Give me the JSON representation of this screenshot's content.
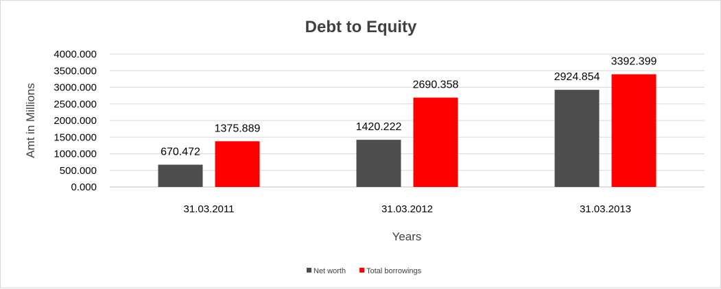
{
  "chart_data": {
    "type": "bar",
    "title": "Debt to Equity",
    "xlabel": "Years",
    "ylabel": "Amt in Millions",
    "categories": [
      "31.03.2011",
      "31.03.2012",
      "31.03.2013"
    ],
    "series": [
      {
        "name": "Net worth",
        "color": "#4d4d4d",
        "values": [
          670.472,
          1420.222,
          2924.854
        ],
        "labels": [
          "670.472",
          "1420.222",
          "2924.854"
        ]
      },
      {
        "name": "Total borrowings",
        "color": "#ff0000",
        "values": [
          1375.889,
          2690.358,
          3392.399
        ],
        "labels": [
          "1375.889",
          "2690.358",
          "3392.399"
        ]
      }
    ],
    "ylim": [
      0,
      4000
    ],
    "yticks": [
      "0.000",
      "500.000",
      "1000.000",
      "1500.000",
      "2000.000",
      "2500.000",
      "3000.000",
      "3500.000",
      "4000.000"
    ],
    "grid": true,
    "legend_position": "bottom"
  }
}
